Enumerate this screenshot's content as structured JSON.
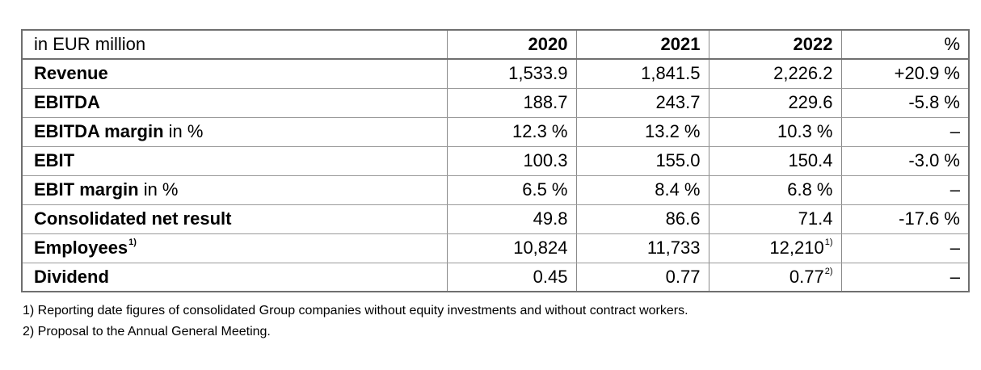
{
  "table": {
    "unit_label": "in EUR million",
    "years": [
      "2020",
      "2021",
      "2022"
    ],
    "change_label": "%",
    "rows": [
      {
        "label": "Revenue",
        "suffix": "",
        "label_sup": "",
        "v2020": "1,533.9",
        "v2021": "1,841.5",
        "v2022": "2,226.2",
        "v2022_sup": "",
        "change": "+20.9 %"
      },
      {
        "label": "EBITDA",
        "suffix": "",
        "label_sup": "",
        "v2020": "188.7",
        "v2021": "243.7",
        "v2022": "229.6",
        "v2022_sup": "",
        "change": "-5.8 %"
      },
      {
        "label": "EBITDA margin",
        "suffix": " in %",
        "label_sup": "",
        "v2020": "12.3 %",
        "v2021": "13.2 %",
        "v2022": "10.3 %",
        "v2022_sup": "",
        "change": "–"
      },
      {
        "label": "EBIT",
        "suffix": "",
        "label_sup": "",
        "v2020": "100.3",
        "v2021": "155.0",
        "v2022": "150.4",
        "v2022_sup": "",
        "change": "-3.0 %"
      },
      {
        "label": "EBIT margin",
        "suffix": " in %",
        "label_sup": "",
        "v2020": "6.5 %",
        "v2021": "8.4 %",
        "v2022": "6.8 %",
        "v2022_sup": "",
        "change": "–"
      },
      {
        "label": "Consolidated net result",
        "suffix": "",
        "label_sup": "",
        "v2020": "49.8",
        "v2021": "86.6",
        "v2022": "71.4",
        "v2022_sup": "",
        "change": "-17.6 %"
      },
      {
        "label": "Employees",
        "suffix": "",
        "label_sup": "1)",
        "v2020": "10,824",
        "v2021": "11,733",
        "v2022": "12,210",
        "v2022_sup": "1)",
        "change": "–"
      },
      {
        "label": "Dividend",
        "suffix": "",
        "label_sup": "",
        "v2020": "0.45",
        "v2021": "0.77",
        "v2022": "0.77",
        "v2022_sup": "2)",
        "change": "–"
      }
    ]
  },
  "footnotes": [
    "1) Reporting date figures of consolidated Group companies without equity investments and without contract workers.",
    "2) Proposal to the Annual General Meeting."
  ]
}
